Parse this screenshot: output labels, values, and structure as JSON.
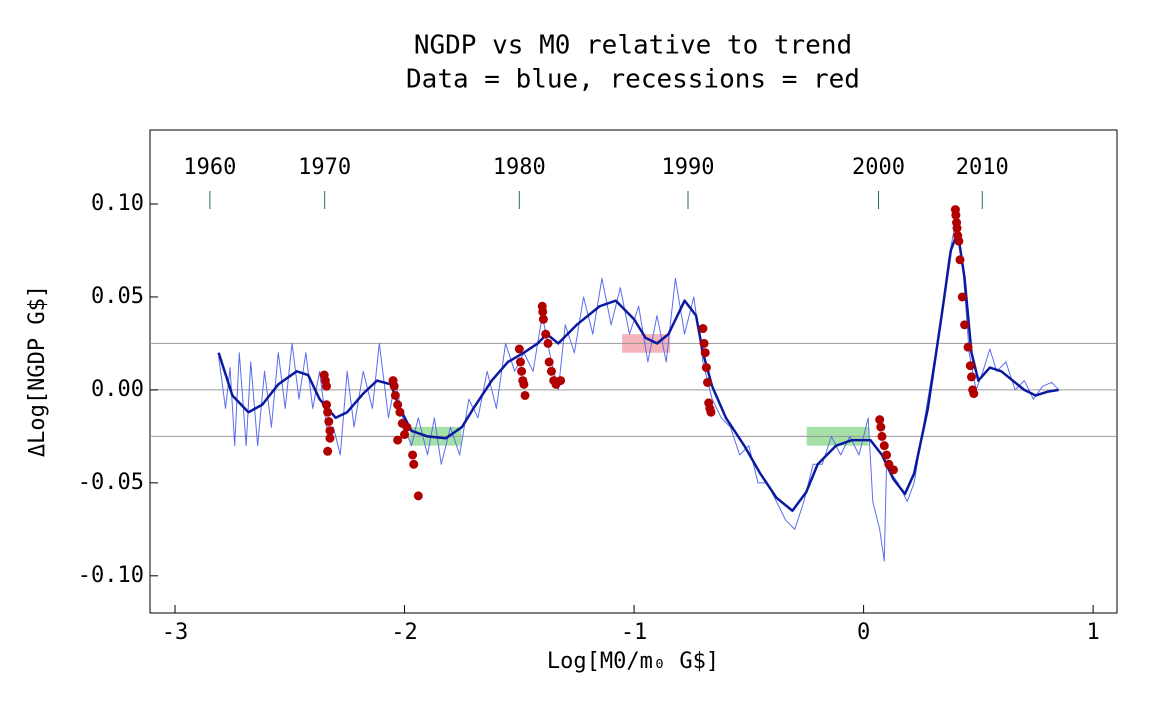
{
  "chart_data": {
    "type": "line",
    "title": [
      "NGDP vs M0 relative to trend",
      "Data = blue, recessions = red"
    ],
    "x_label": "Log[M0/m₀ G$]",
    "y_label": "ΔLog[NGDP G$]",
    "xlim": [
      -3.109,
      1.104
    ],
    "ylim": [
      -0.12,
      0.1398
    ],
    "xticks": [
      -3,
      -2,
      -1,
      0,
      1
    ],
    "yticks": [
      {
        "value": 0.1,
        "label": "0.10"
      },
      {
        "value": 0.05,
        "label": "0.05"
      },
      {
        "value": 0,
        "label": "0.00"
      },
      {
        "value": -0.05,
        "label": "-0.05"
      },
      {
        "value": -0.1,
        "label": "-0.10"
      }
    ],
    "reference_lines": [
      0.025,
      0,
      -0.025
    ],
    "year_markers": [
      {
        "label": "1960",
        "x": -2.848
      },
      {
        "label": "1970",
        "x": -2.348
      },
      {
        "label": "1980",
        "x": -1.5
      },
      {
        "label": "1990",
        "x": -0.765
      },
      {
        "label": "2000",
        "x": 0.065
      },
      {
        "label": "2010",
        "x": 0.517
      }
    ],
    "shaded_regions": [
      {
        "x": [
          -1.978,
          -1.752
        ],
        "y": [
          -0.03,
          -0.0199
        ],
        "color": "#8fd88f"
      },
      {
        "x": [
          -1.052,
          -0.843
        ],
        "y": [
          0.02,
          0.03
        ],
        "color": "#f4a0a8"
      },
      {
        "x": [
          -0.248,
          0.022
        ],
        "y": [
          -0.03,
          -0.0199
        ],
        "color": "#8fd88f"
      }
    ],
    "series": [
      {
        "mark": "line",
        "color": "#5b6cf0",
        "width": 1,
        "x": [
          -2.81,
          -2.78,
          -2.76,
          -2.74,
          -2.72,
          -2.69,
          -2.67,
          -2.64,
          -2.61,
          -2.58,
          -2.55,
          -2.52,
          -2.49,
          -2.46,
          -2.43,
          -2.4,
          -2.37,
          -2.34,
          -2.31,
          -2.28,
          -2.25,
          -2.22,
          -2.18,
          -2.14,
          -2.11,
          -2.07,
          -2.04,
          -2.0,
          -1.97,
          -1.94,
          -1.9,
          -1.87,
          -1.84,
          -1.8,
          -1.76,
          -1.72,
          -1.68,
          -1.64,
          -1.6,
          -1.56,
          -1.52,
          -1.48,
          -1.44,
          -1.4,
          -1.36,
          -1.33,
          -1.3,
          -1.26,
          -1.22,
          -1.18,
          -1.14,
          -1.1,
          -1.06,
          -1.02,
          -0.98,
          -0.94,
          -0.9,
          -0.86,
          -0.82,
          -0.78,
          -0.74,
          -0.7,
          -0.66,
          -0.62,
          -0.58,
          -0.54,
          -0.5,
          -0.46,
          -0.42,
          -0.38,
          -0.34,
          -0.3,
          -0.26,
          -0.22,
          -0.18,
          -0.14,
          -0.1,
          -0.06,
          -0.02,
          0.02,
          0.04,
          0.07,
          0.09,
          0.1,
          0.12,
          0.15,
          0.19,
          0.22,
          0.26,
          0.3,
          0.34,
          0.37,
          0.4,
          0.43,
          0.46,
          0.49,
          0.52,
          0.55,
          0.58,
          0.62,
          0.66,
          0.7,
          0.74,
          0.78,
          0.82,
          0.85
        ],
        "values": [
          0.018,
          -0.01,
          0.012,
          -0.03,
          0.02,
          -0.03,
          0.015,
          -0.03,
          0.01,
          -0.02,
          0.02,
          -0.01,
          0.025,
          -0.005,
          0.02,
          -0.01,
          0.01,
          -0.02,
          -0.02,
          -0.035,
          0.01,
          -0.02,
          0.01,
          -0.01,
          0.025,
          -0.015,
          0.005,
          -0.02,
          -0.03,
          -0.015,
          -0.035,
          -0.015,
          -0.04,
          -0.02,
          -0.035,
          -0.005,
          -0.015,
          0.01,
          -0.01,
          0.025,
          0.01,
          0.02,
          0.01,
          0.04,
          0.015,
          0.0,
          0.035,
          0.02,
          0.05,
          0.03,
          0.06,
          0.035,
          0.055,
          0.03,
          0.045,
          0.015,
          0.04,
          0.015,
          0.06,
          0.03,
          0.05,
          0.015,
          -0.005,
          -0.015,
          -0.02,
          -0.035,
          -0.03,
          -0.05,
          -0.05,
          -0.06,
          -0.07,
          -0.075,
          -0.06,
          -0.04,
          -0.04,
          -0.025,
          -0.035,
          -0.025,
          -0.035,
          -0.015,
          -0.06,
          -0.075,
          -0.092,
          -0.04,
          -0.045,
          -0.05,
          -0.06,
          -0.05,
          -0.02,
          0.01,
          0.04,
          0.07,
          0.09,
          0.07,
          0.02,
          0.0,
          0.01,
          0.022,
          0.01,
          0.015,
          0.0,
          0.005,
          -0.005,
          0.002,
          0.004,
          0.0
        ]
      },
      {
        "mark": "line",
        "color": "#0a1a9e",
        "width": 2.5,
        "x": [
          -2.81,
          -2.75,
          -2.68,
          -2.62,
          -2.55,
          -2.47,
          -2.42,
          -2.37,
          -2.3,
          -2.25,
          -2.18,
          -2.12,
          -2.06,
          -2.02,
          -1.97,
          -1.9,
          -1.82,
          -1.75,
          -1.7,
          -1.62,
          -1.55,
          -1.48,
          -1.42,
          -1.38,
          -1.33,
          -1.25,
          -1.15,
          -1.08,
          -1.0,
          -0.95,
          -0.9,
          -0.85,
          -0.78,
          -0.73,
          -0.7,
          -0.66,
          -0.6,
          -0.52,
          -0.45,
          -0.38,
          -0.31,
          -0.25,
          -0.2,
          -0.12,
          -0.05,
          0.03,
          0.08,
          0.13,
          0.18,
          0.22,
          0.28,
          0.34,
          0.38,
          0.41,
          0.44,
          0.47,
          0.5,
          0.55,
          0.6,
          0.7,
          0.75,
          0.8,
          0.85
        ],
        "values": [
          0.02,
          -0.003,
          -0.012,
          -0.008,
          0.003,
          0.01,
          0.008,
          -0.005,
          -0.015,
          -0.012,
          -0.002,
          0.005,
          0.003,
          -0.01,
          -0.022,
          -0.025,
          -0.026,
          -0.02,
          -0.01,
          0.005,
          0.015,
          0.02,
          0.025,
          0.03,
          0.025,
          0.035,
          0.045,
          0.048,
          0.038,
          0.028,
          0.025,
          0.03,
          0.048,
          0.04,
          0.02,
          0.002,
          -0.015,
          -0.03,
          -0.045,
          -0.058,
          -0.065,
          -0.055,
          -0.04,
          -0.03,
          -0.027,
          -0.027,
          -0.035,
          -0.048,
          -0.056,
          -0.045,
          -0.01,
          0.04,
          0.075,
          0.085,
          0.06,
          0.02,
          0.005,
          0.012,
          0.01,
          0.0,
          -0.003,
          -0.001,
          0.0
        ]
      },
      {
        "mark": "dots",
        "color": "#b00000",
        "x": [
          -2.35,
          -2.345,
          -2.34,
          -2.34,
          -2.335,
          -2.33,
          -2.325,
          -2.325,
          -2.335,
          -2.05,
          -2.045,
          -2.04,
          -2.03,
          -2.02,
          -2.01,
          -2.0,
          -2.03,
          -1.99,
          -1.965,
          -1.96,
          -1.94,
          -1.5,
          -1.495,
          -1.49,
          -1.485,
          -1.48,
          -1.475,
          -1.4,
          -1.398,
          -1.395,
          -1.385,
          -1.375,
          -1.37,
          -1.36,
          -1.35,
          -1.34,
          -1.32,
          -0.7,
          -0.695,
          -0.69,
          -0.685,
          -0.68,
          -0.675,
          -0.67,
          -0.665,
          0.07,
          0.075,
          0.08,
          0.09,
          0.1,
          0.11,
          0.13,
          0.4,
          0.402,
          0.405,
          0.407,
          0.41,
          0.415,
          0.42,
          0.43,
          0.44,
          0.455,
          0.465,
          0.47,
          0.475,
          0.48
        ],
        "values": [
          0.008,
          0.005,
          0.002,
          -0.008,
          -0.012,
          -0.017,
          -0.022,
          -0.026,
          -0.033,
          0.005,
          0.002,
          -0.003,
          -0.008,
          -0.012,
          -0.018,
          -0.024,
          -0.027,
          -0.02,
          -0.035,
          -0.04,
          -0.057,
          0.022,
          0.015,
          0.01,
          0.005,
          0.003,
          -0.003,
          0.045,
          0.042,
          0.038,
          0.03,
          0.025,
          0.015,
          0.01,
          0.005,
          0.003,
          0.005,
          0.033,
          0.025,
          0.02,
          0.012,
          0.004,
          -0.007,
          -0.01,
          -0.012,
          -0.016,
          -0.02,
          -0.025,
          -0.03,
          -0.035,
          -0.04,
          -0.043,
          0.097,
          0.094,
          0.09,
          0.087,
          0.083,
          0.08,
          0.07,
          0.05,
          0.035,
          0.023,
          0.013,
          0.007,
          0.0,
          -0.002
        ]
      }
    ]
  }
}
